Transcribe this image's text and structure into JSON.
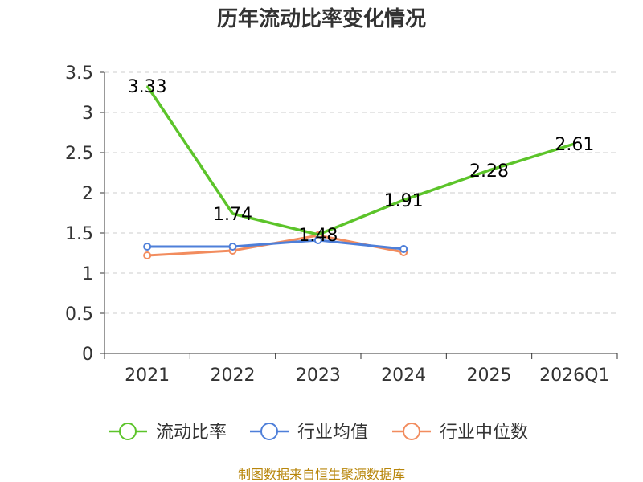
{
  "chart_data": {
    "type": "line",
    "title": "历年流动比率变化情况",
    "categories": [
      "2021",
      "2022",
      "2023",
      "2024",
      "2025",
      "2026Q1"
    ],
    "ylim": [
      0,
      3.5
    ],
    "yticks": [
      "0",
      "0.5",
      "1",
      "1.5",
      "2",
      "2.5",
      "3",
      "3.5"
    ],
    "grid": true,
    "legend_position": "bottom",
    "series": [
      {
        "name": "流动比率",
        "color": "#5cc42a",
        "values": [
          3.33,
          1.74,
          1.48,
          1.91,
          2.28,
          2.61
        ],
        "labels": [
          "3.33",
          "1.74",
          "1.48",
          "1.91",
          "2.28",
          "2.61"
        ]
      },
      {
        "name": "行业均值",
        "color": "#4e7fd9",
        "values": [
          1.33,
          1.33,
          1.41,
          1.3,
          null,
          null
        ]
      },
      {
        "name": "行业中位数",
        "color": "#f28c5e",
        "values": [
          1.22,
          1.28,
          1.47,
          1.26,
          null,
          null
        ]
      }
    ],
    "source": "制图数据来自恒生聚源数据库"
  }
}
